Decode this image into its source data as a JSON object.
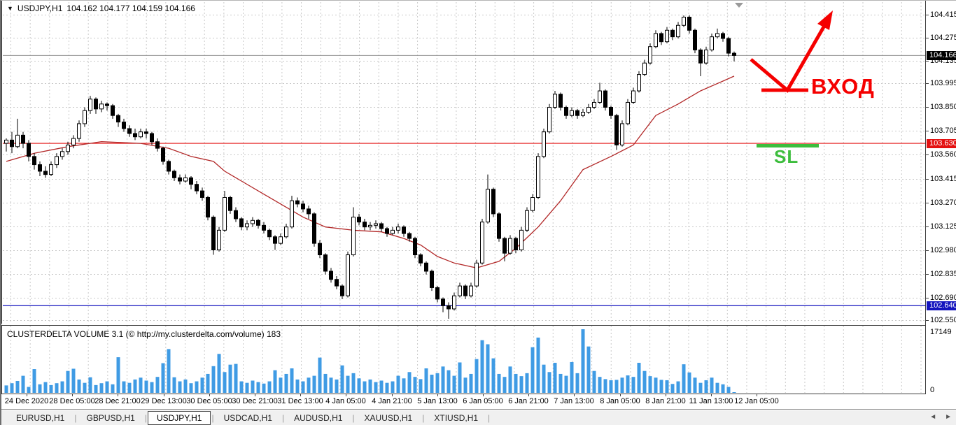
{
  "header": {
    "symbol": "USDJPY,H1",
    "ohlc_line": "104.162 104.177 104.159 104.166"
  },
  "icons": {
    "symbol_dropdown": "▼",
    "tab_scroll_left": "◄",
    "tab_scroll_right": "►"
  },
  "indicator": {
    "title": "CLUSTERDELTA VOLUME 3.1 (© http://my.clusterdelta.com/volume)",
    "value": "183"
  },
  "price_axis": {
    "ticks": [
      "104.415",
      "104.275",
      "104.135",
      "103.995",
      "103.850",
      "103.705",
      "103.560",
      "103.415",
      "103.270",
      "103.125",
      "102.980",
      "102.835",
      "102.690",
      "102.550"
    ],
    "current_price_box": {
      "label": "104.166",
      "bg": "#000000"
    },
    "red_line_box": {
      "label": "103.630",
      "bg": "#e41010"
    },
    "blue_line_box": {
      "label": "102.640",
      "bg": "#1414bE"
    }
  },
  "volume_axis": {
    "max_label": "17149",
    "zero_label": "0"
  },
  "time_axis": {
    "labels": [
      "24 Dec 2020",
      "28 Dec 05:00",
      "28 Dec 21:00",
      "29 Dec 13:00",
      "30 Dec 05:00",
      "30 Dec 21:00",
      "31 Dec 13:00",
      "4 Jan 05:00",
      "4 Jan 21:00",
      "5 Jan 13:00",
      "6 Jan 05:00",
      "6 Jan 21:00",
      "7 Jan 13:00",
      "8 Jan 05:00",
      "8 Jan 21:00",
      "11 Jan 13:00",
      "12 Jan 05:00"
    ]
  },
  "annotations": {
    "entry_text": "ВХОД",
    "entry_color": "#f50000",
    "sl_text": "SL",
    "sl_color": "#3dbd3d"
  },
  "tabs": {
    "items": [
      "EURUSD,H1",
      "GBPUSD,H1",
      "USDJPY,H1",
      "USDCAD,H1",
      "AUDUSD,H1",
      "XAUUSD,H1",
      "XTIUSD,H1"
    ],
    "active_index": 2
  },
  "chart_data": {
    "type": "candlestick",
    "symbol": "USDJPY",
    "timeframe": "H1",
    "ylim": [
      102.55,
      104.415
    ],
    "grid": true,
    "hlines": [
      {
        "value": 104.166,
        "color": "#909090",
        "role": "current-price"
      },
      {
        "value": 103.63,
        "color": "#e41010",
        "role": "entry-level"
      },
      {
        "value": 102.64,
        "color": "#1414be",
        "role": "support-level"
      }
    ],
    "candles": [
      [
        103.63,
        103.66,
        103.58,
        103.65
      ],
      [
        103.65,
        103.7,
        103.57,
        103.61
      ],
      [
        103.61,
        103.78,
        103.6,
        103.68
      ],
      [
        103.68,
        103.7,
        103.6,
        103.63
      ],
      [
        103.63,
        103.65,
        103.52,
        103.55
      ],
      [
        103.55,
        103.57,
        103.47,
        103.5
      ],
      [
        103.5,
        103.52,
        103.43,
        103.46
      ],
      [
        103.46,
        103.49,
        103.42,
        103.44
      ],
      [
        103.44,
        103.52,
        103.43,
        103.5
      ],
      [
        103.5,
        103.57,
        103.48,
        103.55
      ],
      [
        103.55,
        103.6,
        103.53,
        103.58
      ],
      [
        103.58,
        103.64,
        103.56,
        103.62
      ],
      [
        103.62,
        103.68,
        103.6,
        103.66
      ],
      [
        103.66,
        103.77,
        103.64,
        103.75
      ],
      [
        103.75,
        103.85,
        103.73,
        103.83
      ],
      [
        103.83,
        103.92,
        103.81,
        103.9
      ],
      [
        103.9,
        103.91,
        103.81,
        103.84
      ],
      [
        103.84,
        103.89,
        103.82,
        103.87
      ],
      [
        103.87,
        103.88,
        103.83,
        103.86
      ],
      [
        103.86,
        103.87,
        103.78,
        103.8
      ],
      [
        103.8,
        103.81,
        103.73,
        103.76
      ],
      [
        103.76,
        103.78,
        103.7,
        103.72
      ],
      [
        103.72,
        103.74,
        103.67,
        103.69
      ],
      [
        103.69,
        103.72,
        103.65,
        103.67
      ],
      [
        103.67,
        103.72,
        103.66,
        103.7
      ],
      [
        103.7,
        103.72,
        103.66,
        103.69
      ],
      [
        103.69,
        103.7,
        103.62,
        103.64
      ],
      [
        103.64,
        103.66,
        103.58,
        103.6
      ],
      [
        103.6,
        103.61,
        103.5,
        103.52
      ],
      [
        103.52,
        103.53,
        103.44,
        103.46
      ],
      [
        103.46,
        103.47,
        103.4,
        103.42
      ],
      [
        103.42,
        103.44,
        103.38,
        103.4
      ],
      [
        103.4,
        103.44,
        103.39,
        103.42
      ],
      [
        103.42,
        103.43,
        103.35,
        103.38
      ],
      [
        103.38,
        103.4,
        103.32,
        103.34
      ],
      [
        103.34,
        103.36,
        103.28,
        103.3
      ],
      [
        103.3,
        103.31,
        103.16,
        103.18
      ],
      [
        103.18,
        103.19,
        102.95,
        102.98
      ],
      [
        102.98,
        103.12,
        102.97,
        103.1
      ],
      [
        103.1,
        103.34,
        103.09,
        103.3
      ],
      [
        103.3,
        103.31,
        103.2,
        103.22
      ],
      [
        103.22,
        103.24,
        103.15,
        103.17
      ],
      [
        103.17,
        103.18,
        103.1,
        103.12
      ],
      [
        103.12,
        103.16,
        103.1,
        103.14
      ],
      [
        103.14,
        103.18,
        103.12,
        103.16
      ],
      [
        103.16,
        103.17,
        103.11,
        103.13
      ],
      [
        103.13,
        103.15,
        103.08,
        103.1
      ],
      [
        103.1,
        103.11,
        103.04,
        103.06
      ],
      [
        103.06,
        103.07,
        102.98,
        103.02
      ],
      [
        103.02,
        103.08,
        103.01,
        103.06
      ],
      [
        103.06,
        103.14,
        103.05,
        103.12
      ],
      [
        103.12,
        103.31,
        103.11,
        103.28
      ],
      [
        103.28,
        103.3,
        103.24,
        103.26
      ],
      [
        103.26,
        103.28,
        103.21,
        103.23
      ],
      [
        103.23,
        103.25,
        103.17,
        103.2
      ],
      [
        103.2,
        103.21,
        103.0,
        103.02
      ],
      [
        103.02,
        103.04,
        102.93,
        102.95
      ],
      [
        102.95,
        102.96,
        102.83,
        102.85
      ],
      [
        102.85,
        102.87,
        102.78,
        102.8
      ],
      [
        102.8,
        102.82,
        102.74,
        102.76
      ],
      [
        102.76,
        102.77,
        102.68,
        102.7
      ],
      [
        102.7,
        102.97,
        102.69,
        102.95
      ],
      [
        102.95,
        103.24,
        102.94,
        103.18
      ],
      [
        103.18,
        103.2,
        103.13,
        103.15
      ],
      [
        103.15,
        103.17,
        103.1,
        103.12
      ],
      [
        103.12,
        103.15,
        103.1,
        103.13
      ],
      [
        103.13,
        103.16,
        103.11,
        103.14
      ],
      [
        103.14,
        103.15,
        103.09,
        103.11
      ],
      [
        103.11,
        103.12,
        103.06,
        103.08
      ],
      [
        103.08,
        103.12,
        103.07,
        103.1
      ],
      [
        103.1,
        103.14,
        103.08,
        103.12
      ],
      [
        103.12,
        103.13,
        103.06,
        103.08
      ],
      [
        103.08,
        103.09,
        103.03,
        103.05
      ],
      [
        103.05,
        103.06,
        102.93,
        102.95
      ],
      [
        102.95,
        102.96,
        102.88,
        102.9
      ],
      [
        102.9,
        102.91,
        102.83,
        102.85
      ],
      [
        102.85,
        102.86,
        102.73,
        102.75
      ],
      [
        102.75,
        102.76,
        102.66,
        102.68
      ],
      [
        102.68,
        102.69,
        102.6,
        102.64
      ],
      [
        102.64,
        102.66,
        102.56,
        102.62
      ],
      [
        102.62,
        102.72,
        102.61,
        102.7
      ],
      [
        102.7,
        102.78,
        102.69,
        102.76
      ],
      [
        102.76,
        102.77,
        102.68,
        102.7
      ],
      [
        102.7,
        102.78,
        102.69,
        102.76
      ],
      [
        102.76,
        102.92,
        102.75,
        102.9
      ],
      [
        102.9,
        103.17,
        102.89,
        103.15
      ],
      [
        103.15,
        103.44,
        103.14,
        103.35
      ],
      [
        103.35,
        103.36,
        103.18,
        103.2
      ],
      [
        103.2,
        103.21,
        103.03,
        103.05
      ],
      [
        103.05,
        103.06,
        102.91,
        102.96
      ],
      [
        102.96,
        103.07,
        102.95,
        103.05
      ],
      [
        103.05,
        103.06,
        102.96,
        102.98
      ],
      [
        102.98,
        103.12,
        102.97,
        103.1
      ],
      [
        103.1,
        103.24,
        103.09,
        103.22
      ],
      [
        103.22,
        103.32,
        103.21,
        103.3
      ],
      [
        103.3,
        103.57,
        103.29,
        103.55
      ],
      [
        103.55,
        103.72,
        103.54,
        103.7
      ],
      [
        103.7,
        103.87,
        103.69,
        103.85
      ],
      [
        103.85,
        103.95,
        103.84,
        103.93
      ],
      [
        103.93,
        103.94,
        103.83,
        103.85
      ],
      [
        103.85,
        103.86,
        103.78,
        103.8
      ],
      [
        103.8,
        103.85,
        103.79,
        103.83
      ],
      [
        103.83,
        103.84,
        103.78,
        103.8
      ],
      [
        103.8,
        103.84,
        103.79,
        103.82
      ],
      [
        103.82,
        103.87,
        103.81,
        103.85
      ],
      [
        103.85,
        103.9,
        103.84,
        103.88
      ],
      [
        103.88,
        104.0,
        103.87,
        103.95
      ],
      [
        103.95,
        103.96,
        103.83,
        103.85
      ],
      [
        103.85,
        103.86,
        103.78,
        103.8
      ],
      [
        103.8,
        103.81,
        103.59,
        103.62
      ],
      [
        103.62,
        103.77,
        103.61,
        103.75
      ],
      [
        103.75,
        103.9,
        103.74,
        103.88
      ],
      [
        103.88,
        103.97,
        103.87,
        103.95
      ],
      [
        103.95,
        104.07,
        103.94,
        104.05
      ],
      [
        104.05,
        104.14,
        104.04,
        104.12
      ],
      [
        104.12,
        104.24,
        104.11,
        104.22
      ],
      [
        104.22,
        104.32,
        104.21,
        104.3
      ],
      [
        104.3,
        104.31,
        104.23,
        104.25
      ],
      [
        104.25,
        104.34,
        104.24,
        104.32
      ],
      [
        104.32,
        104.33,
        104.26,
        104.28
      ],
      [
        104.28,
        104.37,
        104.27,
        104.35
      ],
      [
        104.35,
        104.41,
        104.34,
        104.4
      ],
      [
        104.4,
        104.41,
        104.3,
        104.32
      ],
      [
        104.32,
        104.33,
        104.18,
        104.2
      ],
      [
        104.2,
        104.21,
        104.04,
        104.12
      ],
      [
        104.12,
        104.22,
        104.11,
        104.2
      ],
      [
        104.2,
        104.3,
        104.19,
        104.28
      ],
      [
        104.28,
        104.33,
        104.27,
        104.3
      ],
      [
        104.3,
        104.31,
        104.25,
        104.27
      ],
      [
        104.27,
        104.28,
        104.16,
        104.18
      ],
      [
        104.18,
        104.19,
        104.13,
        104.166
      ]
    ],
    "volumes": [
      2000,
      2600,
      3200,
      4600,
      1600,
      6400,
      2300,
      2900,
      2100,
      2600,
      3100,
      5900,
      6500,
      3600,
      2700,
      4200,
      2100,
      2600,
      3100,
      2300,
      9600,
      3100,
      2700,
      3600,
      4100,
      3300,
      2900,
      4300,
      8000,
      11800,
      4200,
      3100,
      3600,
      2600,
      3100,
      4100,
      5100,
      7200,
      10500,
      5600,
      7600,
      7800,
      3100,
      2700,
      3300,
      2900,
      2500,
      3100,
      6100,
      4100,
      5100,
      6600,
      3600,
      3100,
      4100,
      4600,
      9500,
      5100,
      4100,
      3600,
      7400,
      4600,
      5300,
      3900,
      3100,
      3600,
      2900,
      3300,
      2700,
      3100,
      4600,
      3900,
      5600,
      4300,
      3700,
      6600,
      4900,
      5300,
      7100,
      6100,
      4600,
      8200,
      4100,
      5100,
      9100,
      14200,
      13100,
      9300,
      5100,
      4300,
      7100,
      5100,
      4500,
      5300,
      12300,
      14900,
      7600,
      5600,
      8100,
      5100,
      4600,
      8300,
      5300,
      17149,
      12500,
      5900,
      4300,
      3700,
      3400,
      3500,
      4100,
      4700,
      4300,
      8100,
      5900,
      4500,
      4100,
      3500,
      3400,
      2400,
      3100,
      7700,
      5500,
      4100,
      2700,
      3400,
      4100,
      2700,
      2300,
      1600,
      183
    ],
    "volume_max": 17149,
    "ma_line": {
      "color": "#b22828",
      "points": [
        [
          0,
          103.52
        ],
        [
          5,
          103.57
        ],
        [
          11,
          103.61
        ],
        [
          17,
          103.64
        ],
        [
          24,
          103.63
        ],
        [
          29,
          103.6
        ],
        [
          33,
          103.55
        ],
        [
          37,
          103.52
        ],
        [
          39,
          103.46
        ],
        [
          42,
          103.4
        ],
        [
          46,
          103.32
        ],
        [
          49,
          103.26
        ],
        [
          53,
          103.18
        ],
        [
          57,
          103.12
        ],
        [
          62,
          103.1
        ],
        [
          67,
          103.09
        ],
        [
          71,
          103.05
        ],
        [
          74,
          103.01
        ],
        [
          77,
          102.94
        ],
        [
          80,
          102.9
        ],
        [
          84,
          102.87
        ],
        [
          88,
          102.91
        ],
        [
          91,
          102.99
        ],
        [
          95,
          103.12
        ],
        [
          99,
          103.28
        ],
        [
          103,
          103.47
        ],
        [
          108,
          103.55
        ],
        [
          112,
          103.62
        ],
        [
          116,
          103.8
        ],
        [
          120,
          103.87
        ],
        [
          124,
          103.95
        ],
        [
          128,
          104.01
        ],
        [
          130,
          104.04
        ]
      ]
    }
  }
}
